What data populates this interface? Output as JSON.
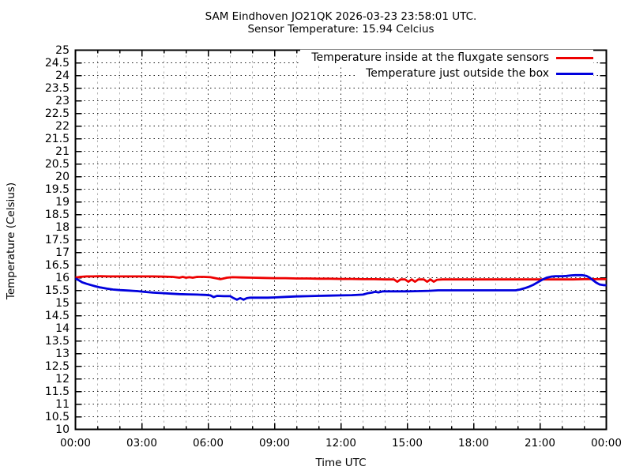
{
  "chart_data": {
    "type": "line",
    "title": "SAM Eindhoven JO21QK 2026-03-23 23:58:01 UTC.",
    "subtitle": "Sensor Temperature: 15.94 Celcius",
    "xlabel": "Time UTC",
    "ylabel": "Temperature (Celsius)",
    "xlim_hours": [
      0,
      24
    ],
    "ylim": [
      10,
      25
    ],
    "grid": true,
    "legend_position": "top-right-inside",
    "background": "#ffffff",
    "xtick_minor_every_hours": 1,
    "xticks": {
      "hours": [
        0,
        3,
        6,
        9,
        12,
        15,
        18,
        21,
        24
      ],
      "labels": [
        "00:00",
        "03:00",
        "06:00",
        "09:00",
        "12:00",
        "15:00",
        "18:00",
        "21:00",
        "00:00"
      ]
    },
    "yticks": {
      "values": [
        25,
        24.5,
        24,
        23.5,
        23,
        22.5,
        22,
        21.5,
        21,
        20.5,
        20,
        19.5,
        19,
        18.5,
        18,
        17.5,
        17,
        16.5,
        16,
        15.5,
        15,
        14.5,
        14,
        13.5,
        13,
        12.5,
        12,
        11.5,
        11,
        10.5,
        10
      ],
      "labels": [
        "25",
        "24.5",
        "24",
        "23.5",
        "23",
        "22.5",
        "22",
        "21.5",
        "21",
        "20.5",
        "20",
        "19.5",
        "19",
        "18.5",
        "18",
        "17.5",
        "17",
        "16.5",
        "16",
        "15.5",
        "15",
        "14.5",
        "14",
        "13.5",
        "13",
        "12.5",
        "12",
        "11.5",
        "11",
        "10.5",
        "10"
      ],
      "unit": "celsius"
    },
    "series": [
      {
        "name": "Temperature inside at the fluxgate sensors",
        "color": "#ee0000",
        "x_hours": [
          0,
          0.2,
          0.5,
          0.8,
          1.1,
          1.5,
          2.0,
          2.5,
          3.0,
          3.5,
          4.0,
          4.4,
          4.7,
          4.85,
          5.0,
          5.15,
          5.3,
          5.5,
          5.8,
          6.1,
          6.4,
          6.55,
          6.7,
          6.85,
          7.1,
          7.5,
          8.0,
          8.5,
          9.0,
          9.5,
          10.0,
          10.5,
          11.0,
          11.5,
          12.0,
          12.5,
          13.0,
          13.5,
          14.0,
          14.4,
          14.55,
          14.7,
          14.9,
          15.05,
          15.2,
          15.35,
          15.5,
          15.75,
          15.9,
          16.05,
          16.2,
          16.35,
          16.6,
          17.0,
          17.5,
          18.0,
          18.5,
          19.0,
          19.5,
          20.0,
          20.5,
          21.0,
          21.5,
          22.0,
          22.5,
          23.0,
          23.5,
          24.0
        ],
        "y_celsius": [
          16.0,
          16.03,
          16.05,
          16.05,
          16.06,
          16.05,
          16.05,
          16.05,
          16.05,
          16.05,
          16.04,
          16.03,
          16.0,
          16.03,
          16.0,
          16.02,
          16.0,
          16.03,
          16.03,
          16.02,
          15.97,
          15.94,
          15.97,
          16.0,
          16.02,
          16.01,
          16.0,
          15.99,
          15.98,
          15.98,
          15.97,
          15.97,
          15.96,
          15.96,
          15.95,
          15.95,
          15.94,
          15.94,
          15.93,
          15.93,
          15.84,
          15.93,
          15.93,
          15.84,
          15.93,
          15.84,
          15.93,
          15.93,
          15.84,
          15.93,
          15.84,
          15.92,
          15.93,
          15.93,
          15.93,
          15.93,
          15.93,
          15.93,
          15.93,
          15.93,
          15.93,
          15.93,
          15.93,
          15.93,
          15.93,
          15.94,
          15.94,
          15.94
        ]
      },
      {
        "name": "Temperature just outside the box",
        "color": "#0000dd",
        "x_hours": [
          0,
          0.15,
          0.3,
          0.5,
          0.7,
          0.9,
          1.1,
          1.4,
          1.7,
          2.0,
          2.4,
          2.8,
          3.1,
          3.5,
          3.9,
          4.3,
          4.7,
          5.1,
          5.5,
          5.9,
          6.1,
          6.25,
          6.4,
          6.7,
          7.0,
          7.15,
          7.3,
          7.45,
          7.6,
          7.75,
          7.9,
          8.3,
          8.7,
          9.0,
          9.5,
          10.0,
          10.5,
          11.0,
          11.5,
          12.0,
          12.5,
          13.0,
          13.2,
          13.4,
          13.55,
          13.7,
          13.9,
          14.5,
          15.0,
          15.5,
          16.0,
          16.4,
          17.0,
          17.5,
          18.0,
          18.5,
          19.0,
          19.5,
          19.9,
          20.1,
          20.3,
          20.5,
          20.7,
          20.9,
          21.1,
          21.3,
          21.5,
          21.7,
          22.0,
          22.2,
          22.4,
          22.6,
          22.9,
          23.1,
          23.25,
          23.4,
          23.55,
          23.7,
          23.85,
          24.0
        ],
        "y_celsius": [
          15.97,
          15.9,
          15.82,
          15.76,
          15.71,
          15.66,
          15.62,
          15.57,
          15.53,
          15.51,
          15.49,
          15.47,
          15.44,
          15.41,
          15.39,
          15.37,
          15.35,
          15.34,
          15.33,
          15.32,
          15.3,
          15.23,
          15.28,
          15.27,
          15.27,
          15.19,
          15.13,
          15.19,
          15.13,
          15.19,
          15.21,
          15.21,
          15.21,
          15.22,
          15.24,
          15.26,
          15.27,
          15.28,
          15.29,
          15.3,
          15.31,
          15.33,
          15.38,
          15.41,
          15.44,
          15.42,
          15.46,
          15.46,
          15.46,
          15.47,
          15.48,
          15.5,
          15.5,
          15.5,
          15.5,
          15.5,
          15.5,
          15.5,
          15.5,
          15.53,
          15.58,
          15.64,
          15.72,
          15.82,
          15.92,
          16.0,
          16.04,
          16.06,
          16.06,
          16.07,
          16.09,
          16.1,
          16.1,
          16.07,
          16.0,
          15.9,
          15.8,
          15.73,
          15.71,
          15.7
        ]
      }
    ]
  }
}
